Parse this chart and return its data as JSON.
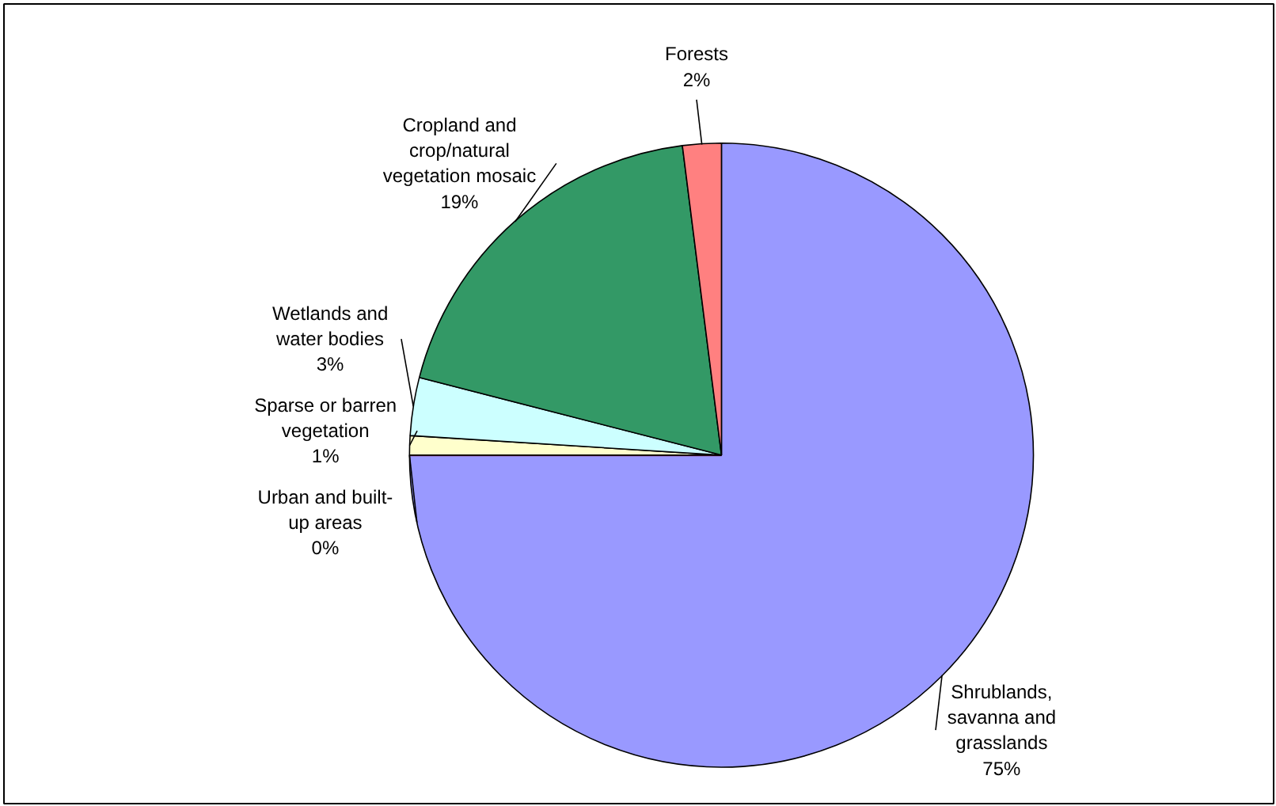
{
  "chart_data": {
    "type": "pie",
    "categories": [
      "Shrublands, savanna and grasslands",
      "Urban and built-up areas",
      "Sparse or barren vegetation",
      "Wetlands and water bodies",
      "Cropland and crop/natural vegetation mosaic",
      "Forests"
    ],
    "values": [
      75,
      0,
      1,
      3,
      19,
      2
    ],
    "value_labels": [
      "75%",
      "0%",
      "1%",
      "3%",
      "19%",
      "2%"
    ],
    "colors": [
      "#9999ff",
      "#993366",
      "#ffffcc",
      "#ccffff",
      "#339966",
      "#ff8080"
    ],
    "legend": false
  }
}
